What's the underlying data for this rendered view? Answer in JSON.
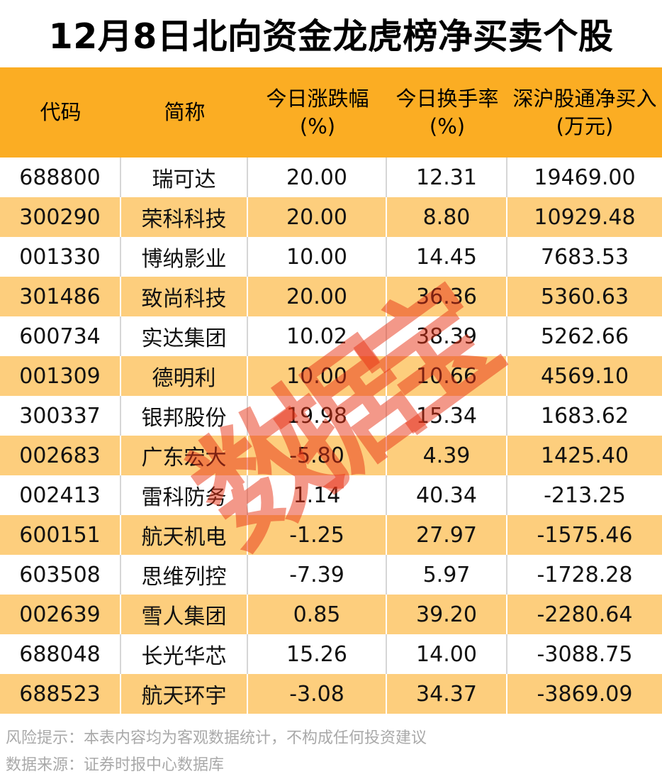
{
  "title": "12月8日北向资金龙虎榜净买卖个股",
  "watermark": "数据宝",
  "header": {
    "code_label": "代码",
    "name_label": "简称",
    "change_label": "今日涨跌幅",
    "change_unit": "(%)",
    "turnover_label": "今日换手率",
    "turnover_unit": "(%)",
    "netbuy_label": "深沪股通净买入",
    "netbuy_unit": "(万元)"
  },
  "footer": {
    "risk": "风险提示：本表内容均为客观数据统计，不构成任何投资建议",
    "source": "数据来源：证券时报中心数据库"
  },
  "colors": {
    "header_bg": "#FBAD23",
    "row_alt_bg": "#FDCE7D",
    "watermark": "rgba(232, 50, 20, 0.5)",
    "divider_on_white": "#D6D6D6",
    "divider_on_alt": "#FFFFFF",
    "footer_text": "#A9A9A9"
  },
  "chart_data": {
    "type": "table",
    "title": "12月8日北向资金龙虎榜净买卖个股",
    "columns": [
      "代码",
      "简称",
      "今日涨跌幅(%)",
      "今日换手率(%)",
      "深沪股通净买入(万元)"
    ],
    "rows": [
      [
        "688800",
        "瑞可达",
        "20.00",
        "12.31",
        "19469.00"
      ],
      [
        "300290",
        "荣科科技",
        "20.00",
        "8.80",
        "10929.48"
      ],
      [
        "001330",
        "博纳影业",
        "10.00",
        "14.45",
        "7683.53"
      ],
      [
        "301486",
        "致尚科技",
        "20.00",
        "36.36",
        "5360.63"
      ],
      [
        "600734",
        "实达集团",
        "10.02",
        "38.39",
        "5262.66"
      ],
      [
        "001309",
        "德明利",
        "10.00",
        "10.66",
        "4569.10"
      ],
      [
        "300337",
        "银邦股份",
        "19.98",
        "15.34",
        "1683.62"
      ],
      [
        "002683",
        "广东宏大",
        "-5.80",
        "4.39",
        "1425.40"
      ],
      [
        "002413",
        "雷科防务",
        "1.14",
        "40.34",
        "-213.25"
      ],
      [
        "600151",
        "航天机电",
        "-1.25",
        "27.97",
        "-1575.46"
      ],
      [
        "603508",
        "思维列控",
        "-7.39",
        "5.97",
        "-1728.28"
      ],
      [
        "002639",
        "雪人集团",
        "0.85",
        "39.20",
        "-2280.64"
      ],
      [
        "688048",
        "长光华芯",
        "15.26",
        "14.00",
        "-3088.75"
      ],
      [
        "688523",
        "航天环宇",
        "-3.08",
        "34.37",
        "-3869.09"
      ]
    ]
  }
}
